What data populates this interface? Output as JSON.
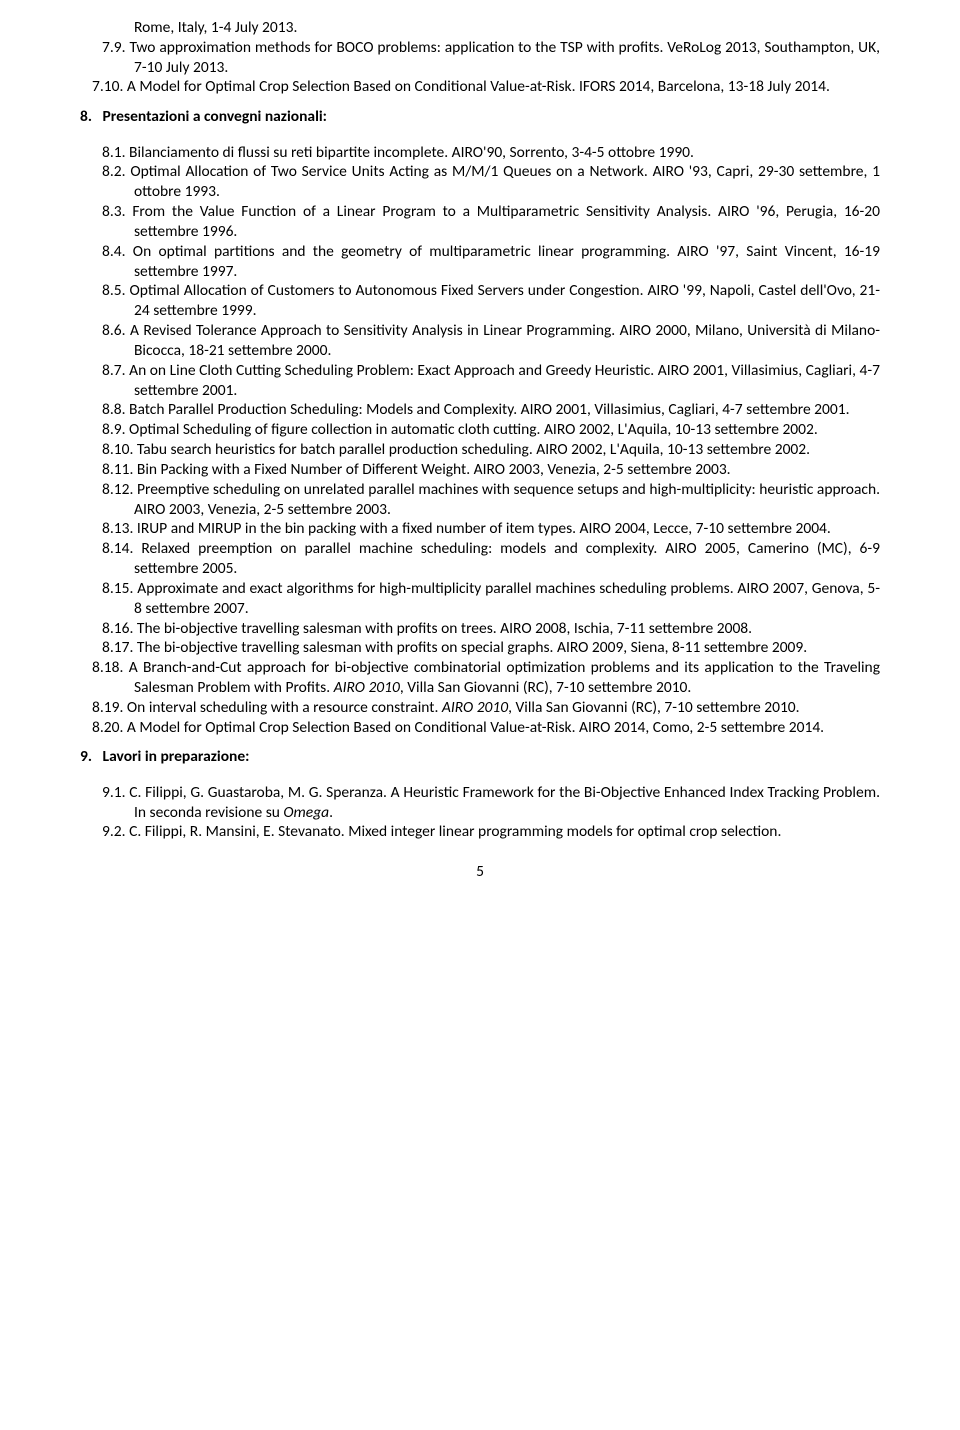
{
  "pre": {
    "p0": "Rome, Italy, 1-4 July 2013.",
    "p79_num": "7.9.",
    "p79_text": "Two approximation methods for BOCO problems: application to the TSP with profits. VeRoLog 2013, Southampton, UK, 7-10 July 2013.",
    "p710_num": "7.10.",
    "p710_text": "A Model for Optimal Crop Selection Based on Conditional Value-at-Risk. IFORS 2014, Barcelona, 13-18 July 2014."
  },
  "sec8": {
    "heading_num": "8.",
    "heading_text": "Presentazioni a convegni nazionali:",
    "items": [
      {
        "n": "8.1.",
        "t": "Bilanciamento di flussi su reti bipartite incomplete. AIRO'90, Sorrento, 3-4-5 ottobre 1990."
      },
      {
        "n": "8.2.",
        "t": "Optimal Allocation of Two Service Units Acting as M/M/1 Queues on a Network. AIRO '93, Capri, 29-30 settembre, 1 ottobre 1993."
      },
      {
        "n": "8.3.",
        "t": "From the Value Function of a Linear Program to a Multiparametric Sensitivity Analysis. AIRO '96, Perugia, 16-20 settembre 1996."
      },
      {
        "n": "8.4.",
        "t": "On optimal partitions and the geometry of multiparametric linear programming. AIRO '97, Saint Vincent, 16-19 settembre 1997."
      },
      {
        "n": "8.5.",
        "t": "Optimal Allocation of Customers to Autonomous Fixed Servers under Congestion. AIRO '99, Napoli, Castel dell'Ovo, 21-24 settembre 1999."
      },
      {
        "n": "8.6.",
        "t": "A Revised Tolerance Approach to Sensitivity Analysis in Linear Programming. AIRO 2000, Milano, Università di Milano-Bicocca, 18-21 settembre 2000."
      },
      {
        "n": "8.7.",
        "t": "An on Line Cloth Cutting Scheduling Problem: Exact Approach and Greedy Heuristic. AIRO 2001, Villasimius, Cagliari, 4-7 settembre 2001."
      },
      {
        "n": "8.8.",
        "t": "Batch Parallel Production Scheduling: Models and Complexity. AIRO 2001, Villasimius, Cagliari, 4-7 settembre 2001."
      },
      {
        "n": "8.9.",
        "t": "Optimal Scheduling of figure collection in automatic cloth cutting. AIRO 2002, L'Aquila, 10-13 settembre 2002."
      },
      {
        "n": "8.10.",
        "t": "Tabu search heuristics for batch parallel production scheduling. AIRO 2002, L'Aquila, 10-13 settembre 2002."
      },
      {
        "n": "8.11.",
        "t": "Bin Packing with a Fixed Number of Different Weight. AIRO 2003, Venezia, 2-5 settembre 2003."
      },
      {
        "n": "8.12.",
        "t": "Preemptive scheduling on unrelated parallel machines with sequence setups and high-multiplicity: heuristic approach. AIRO 2003, Venezia, 2-5 settembre 2003."
      },
      {
        "n": "8.13.",
        "t": "IRUP and MIRUP in the bin packing with a fixed number of item types. AIRO 2004, Lecce, 7-10 settembre 2004."
      },
      {
        "n": "8.14.",
        "t": "Relaxed preemption on parallel machine scheduling: models and complexity. AIRO 2005, Camerino (MC), 6-9 settembre 2005."
      },
      {
        "n": "8.15.",
        "t": "Approximate and exact algorithms for high-multiplicity parallel machines scheduling problems. AIRO 2007, Genova, 5-8 settembre 2007."
      },
      {
        "n": "8.16.",
        "t": "The bi-objective travelling salesman with profits on trees. AIRO 2008, Ischia, 7-11 settembre 2008."
      },
      {
        "n": "8.17.",
        "t": "The bi-objective travelling salesman with profits on special graphs. AIRO 2009, Siena, 8-11 settembre 2009."
      }
    ],
    "item18": {
      "n": "8.18.",
      "pre": "A Branch-and-Cut approach for bi-objective combinatorial optimization problems and its application to the Traveling Salesman Problem with Profits. ",
      "em": "AIRO 2010",
      "post": ", Villa San Giovanni (RC), 7-10 settembre 2010."
    },
    "item19": {
      "n": "8.19.",
      "pre": "On interval scheduling with a resource constraint. ",
      "em": "AIRO 2010",
      "post": ", Villa San Giovanni (RC), 7-10 settembre 2010."
    },
    "item20": {
      "n": "8.20.",
      "t": "A Model for Optimal Crop Selection Based on Conditional Value-at-Risk. AIRO 2014, Como, 2-5 settembre 2014."
    }
  },
  "sec9": {
    "heading_num": "9.",
    "heading_text": "Lavori in preparazione:",
    "item1": {
      "n": "9.1.",
      "pre": "C. Filippi, G. Guastaroba, M. G. Speranza. A Heuristic Framework for the Bi-Objective Enhanced Index Tracking Problem. In seconda revisione su ",
      "em": "Omega",
      "post": "."
    },
    "item2": {
      "n": "9.2.",
      "t": "C. Filippi, R. Mansini, E. Stevanato. Mixed integer linear programming models for optimal crop selection."
    }
  },
  "page_number": "5"
}
